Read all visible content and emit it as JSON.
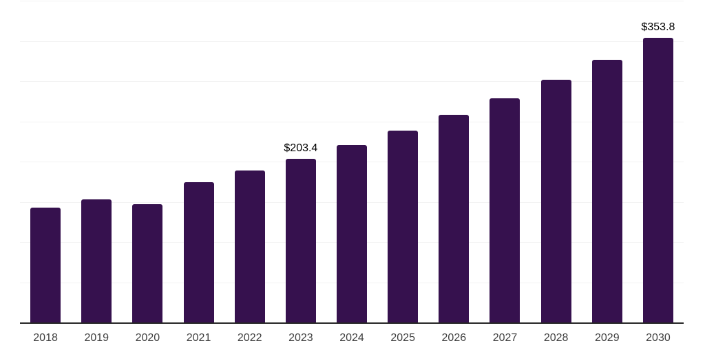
{
  "colors": {
    "background": "#ffffff",
    "bar": "#36114e",
    "gridline": "#f2f2f2",
    "axis": "#262626",
    "tick_label": "#404040",
    "value_label": "#000000"
  },
  "chart_data": {
    "type": "bar",
    "title": "",
    "xlabel": "",
    "ylabel": "",
    "categories": [
      "2018",
      "2019",
      "2020",
      "2021",
      "2022",
      "2023",
      "2024",
      "2025",
      "2026",
      "2027",
      "2028",
      "2029",
      "2030"
    ],
    "values": [
      143.0,
      152.7,
      146.9,
      174.5,
      188.6,
      203.4,
      220.1,
      238.2,
      257.8,
      279.0,
      301.9,
      326.8,
      353.8
    ],
    "value_unit_prefix": "$",
    "data_labels": [
      {
        "category": "2023",
        "label": "$203.4"
      },
      {
        "category": "2030",
        "label": "$353.8"
      }
    ],
    "ylim": [
      0,
      400
    ],
    "gridline_step": 50,
    "grid": true,
    "y_tick_labels_shown": false,
    "legend": false
  }
}
